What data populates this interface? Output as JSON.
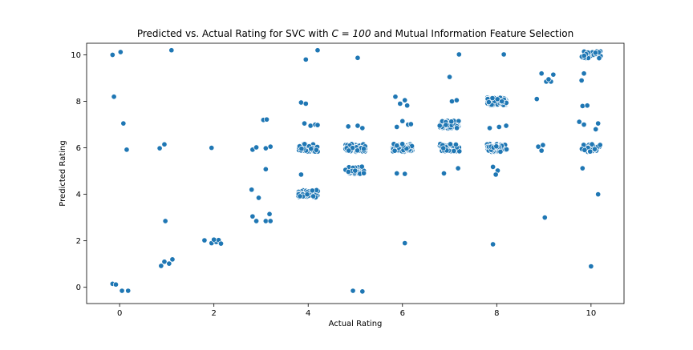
{
  "chart_data": {
    "type": "scatter",
    "title_prefix": "Predicted vs. Actual Rating for SVC with ",
    "title_math": "C = 100",
    "title_suffix": " and Mutual Information Feature Selection",
    "xlabel": "Actual Rating",
    "ylabel": "Predicted Rating",
    "xlim": [
      -0.7,
      10.7
    ],
    "ylim": [
      -0.7,
      10.5
    ],
    "xticks": [
      0,
      2,
      4,
      6,
      8,
      10
    ],
    "yticks": [
      0,
      2,
      4,
      6,
      8,
      10
    ],
    "grid": false,
    "point_color": "#1f77b4",
    "point_edge": "#ffffff",
    "points": [
      [
        -0.15,
        10.0
      ],
      [
        0.02,
        10.12
      ],
      [
        -0.12,
        8.2
      ],
      [
        0.08,
        7.05
      ],
      [
        0.15,
        5.92
      ],
      [
        -0.15,
        0.15
      ],
      [
        -0.08,
        0.12
      ],
      [
        0.05,
        -0.15
      ],
      [
        0.18,
        -0.15
      ],
      [
        1.1,
        10.2
      ],
      [
        0.85,
        5.98
      ],
      [
        0.95,
        6.15
      ],
      [
        0.97,
        2.85
      ],
      [
        0.88,
        0.92
      ],
      [
        0.95,
        1.1
      ],
      [
        1.05,
        1.02
      ],
      [
        1.12,
        1.2
      ],
      [
        1.95,
        6.0
      ],
      [
        1.8,
        2.02
      ],
      [
        1.95,
        1.9
      ],
      [
        2.05,
        1.95
      ],
      [
        2.1,
        2.03
      ],
      [
        2.15,
        1.88
      ],
      [
        2.0,
        2.05
      ],
      [
        3.05,
        7.2
      ],
      [
        3.12,
        7.22
      ],
      [
        2.82,
        5.92
      ],
      [
        2.9,
        6.02
      ],
      [
        3.1,
        5.98
      ],
      [
        3.2,
        6.05
      ],
      [
        3.1,
        5.08
      ],
      [
        2.8,
        4.2
      ],
      [
        2.95,
        3.85
      ],
      [
        2.82,
        3.05
      ],
      [
        2.9,
        2.85
      ],
      [
        3.1,
        2.85
      ],
      [
        3.2,
        2.85
      ],
      [
        3.18,
        3.15
      ],
      [
        4.2,
        10.2
      ],
      [
        3.95,
        9.8
      ],
      [
        3.85,
        7.95
      ],
      [
        3.95,
        7.9
      ],
      [
        3.92,
        7.05
      ],
      [
        4.05,
        6.95
      ],
      [
        4.15,
        7.0
      ],
      [
        4.2,
        6.98
      ],
      [
        3.85,
        4.85
      ],
      [
        5.05,
        9.87
      ],
      [
        4.85,
        6.92
      ],
      [
        5.05,
        6.95
      ],
      [
        5.15,
        6.85
      ],
      [
        4.95,
        -0.15
      ],
      [
        5.15,
        -0.18
      ],
      [
        5.85,
        8.2
      ],
      [
        5.95,
        7.9
      ],
      [
        6.05,
        8.05
      ],
      [
        6.1,
        7.82
      ],
      [
        5.88,
        6.9
      ],
      [
        6.0,
        7.15
      ],
      [
        6.12,
        7.0
      ],
      [
        6.18,
        7.02
      ],
      [
        5.88,
        4.9
      ],
      [
        6.05,
        4.88
      ],
      [
        6.05,
        1.9
      ],
      [
        7.2,
        10.02
      ],
      [
        7.0,
        9.05
      ],
      [
        7.05,
        8.0
      ],
      [
        7.15,
        8.05
      ],
      [
        6.88,
        4.9
      ],
      [
        7.18,
        5.12
      ],
      [
        8.15,
        10.02
      ],
      [
        7.85,
        6.85
      ],
      [
        8.05,
        6.9
      ],
      [
        8.2,
        6.95
      ],
      [
        7.92,
        5.18
      ],
      [
        8.02,
        5.02
      ],
      [
        7.98,
        4.85
      ],
      [
        7.92,
        1.85
      ],
      [
        8.85,
        8.1
      ],
      [
        8.95,
        9.2
      ],
      [
        9.05,
        8.85
      ],
      [
        9.15,
        8.85
      ],
      [
        9.2,
        9.15
      ],
      [
        9.1,
        8.95
      ],
      [
        8.88,
        6.05
      ],
      [
        8.98,
        6.12
      ],
      [
        8.95,
        5.88
      ],
      [
        9.02,
        3.0
      ],
      [
        9.8,
        8.9
      ],
      [
        9.85,
        9.2
      ],
      [
        9.82,
        7.8
      ],
      [
        9.92,
        7.82
      ],
      [
        9.75,
        7.12
      ],
      [
        9.85,
        7.0
      ],
      [
        10.1,
        6.8
      ],
      [
        10.15,
        7.05
      ],
      [
        9.82,
        5.12
      ],
      [
        10.15,
        4.0
      ],
      [
        10.0,
        0.9
      ]
    ],
    "clusters": [
      {
        "cx": 4.0,
        "cy": 6.0,
        "n": 50,
        "seed": 11
      },
      {
        "cx": 4.0,
        "cy": 4.02,
        "n": 50,
        "seed": 12
      },
      {
        "cx": 5.0,
        "cy": 6.0,
        "n": 55,
        "seed": 13
      },
      {
        "cx": 5.0,
        "cy": 5.05,
        "n": 55,
        "seed": 14
      },
      {
        "cx": 6.0,
        "cy": 6.0,
        "n": 90,
        "seed": 15
      },
      {
        "cx": 7.0,
        "cy": 7.0,
        "n": 70,
        "seed": 16
      },
      {
        "cx": 7.0,
        "cy": 6.0,
        "n": 60,
        "seed": 17
      },
      {
        "cx": 8.0,
        "cy": 8.0,
        "n": 60,
        "seed": 18
      },
      {
        "cx": 8.0,
        "cy": 6.0,
        "n": 60,
        "seed": 19
      },
      {
        "cx": 10.0,
        "cy": 10.0,
        "n": 30,
        "seed": 20
      },
      {
        "cx": 10.0,
        "cy": 6.0,
        "n": 30,
        "seed": 21
      }
    ]
  }
}
